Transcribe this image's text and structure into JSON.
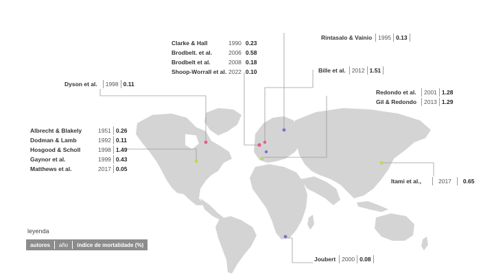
{
  "legend": {
    "title": "leyenda",
    "author_label": "autores",
    "year_label": "año",
    "index_label": "índice de mortalidade (%)"
  },
  "colors": {
    "land": "#d4d4d4",
    "pink": "#e75a8a",
    "green": "#b9d36a",
    "purple": "#7b6fc7",
    "yellow_green": "#c8d64a"
  },
  "studies": [
    {
      "group": "north_america",
      "author": "Albrecht & Blakely",
      "year": "1951",
      "value": "0.26"
    },
    {
      "group": "north_america",
      "author": "Dodman & Lamb",
      "year": "1992",
      "value": "0.11"
    },
    {
      "group": "north_america",
      "author": "Hosgood & Scholl",
      "year": "1998",
      "value": "1.49"
    },
    {
      "group": "north_america",
      "author": "Gaynor et al.",
      "year": "1999",
      "value": "0.43"
    },
    {
      "group": "north_america",
      "author": "Matthews et al.",
      "year": "2017",
      "value": "0.05"
    },
    {
      "group": "canada",
      "author": "Dyson et al.",
      "year": "1998",
      "value": "0.11"
    },
    {
      "group": "uk",
      "author": "Clarke & Hall",
      "year": "1990",
      "value": "0.23"
    },
    {
      "group": "uk",
      "author": "Brodbelt. et al.",
      "year": "2006",
      "value": "0.58"
    },
    {
      "group": "uk",
      "author": "Brodbelt et al.",
      "year": "2008",
      "value": "0.18"
    },
    {
      "group": "uk",
      "author": "Shoop-Worrall et al.",
      "year": "2022",
      "value": "0.10"
    },
    {
      "group": "finland",
      "author": "Rintasalo & Vainio",
      "year": "1995",
      "value": "0.13"
    },
    {
      "group": "belgium",
      "author": "Bille et al.",
      "year": "2012",
      "value": "1.51"
    },
    {
      "group": "spain",
      "author": "Redondo et al.",
      "year": "2001",
      "value": "1.28"
    },
    {
      "group": "spain",
      "author": "Gil & Redondo",
      "year": "2013",
      "value": "1.29"
    },
    {
      "group": "japan",
      "author": "Itami et al.,",
      "year": "2017",
      "value": "0.65"
    },
    {
      "group": "south_africa",
      "author": "Joubert",
      "year": "2000",
      "value": "0.08"
    }
  ]
}
